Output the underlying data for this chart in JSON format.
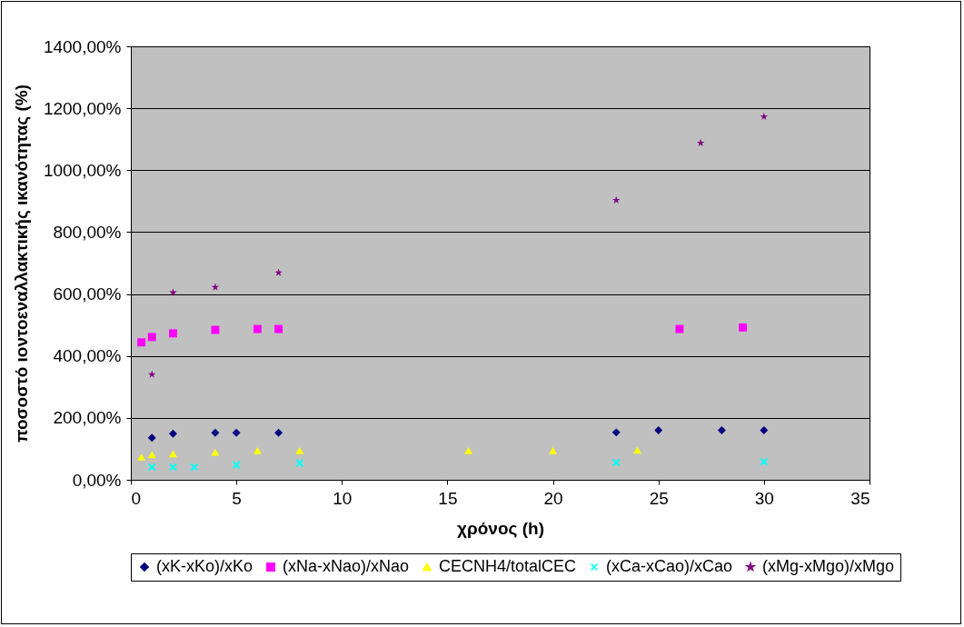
{
  "chart_data": {
    "type": "scatter",
    "xlabel": "χρόνος (h)",
    "ylabel": "ποσοστό ιοντοεναλλακτικής ικανότητας (%)",
    "xlim": [
      0,
      35
    ],
    "xticks": [
      0,
      5,
      10,
      15,
      20,
      25,
      30,
      35
    ],
    "ylim": [
      0,
      1400
    ],
    "yticks": [
      {
        "value": 0,
        "label": "0,00%"
      },
      {
        "value": 200,
        "label": "200,00%"
      },
      {
        "value": 400,
        "label": "400,00%"
      },
      {
        "value": 600,
        "label": "600,00%"
      },
      {
        "value": 800,
        "label": "800,00%"
      },
      {
        "value": 1000,
        "label": "1000,00%"
      },
      {
        "value": 1200,
        "label": "1200,00%"
      },
      {
        "value": 1400,
        "label": "1400,00%"
      }
    ],
    "grid": "y",
    "legend": "bottom",
    "series": [
      {
        "name": "(xK-xKo)/xKo",
        "color": "#000080",
        "marker": "diamond",
        "x": [
          1,
          2,
          4,
          5,
          7,
          23,
          25,
          28,
          30
        ],
        "values": [
          136,
          149,
          152,
          152,
          152,
          153,
          160,
          160,
          160
        ]
      },
      {
        "name": "(xNa-xNao)/xNao",
        "color": "#ff00ff",
        "marker": "square",
        "x": [
          0.5,
          1,
          2,
          4,
          6,
          7,
          26,
          29
        ],
        "values": [
          444,
          461,
          473,
          484,
          487,
          487,
          487,
          492
        ]
      },
      {
        "name": "CECNH4/totalCEC",
        "color": "#ffff00",
        "marker": "triangle",
        "x": [
          0.5,
          1,
          2,
          4,
          6,
          8,
          16,
          20,
          24
        ],
        "values": [
          74,
          81,
          84,
          89,
          94,
          94,
          94,
          94,
          96
        ]
      },
      {
        "name": "(xCa-xCao)/xCao",
        "color": "#00ffff",
        "marker": "cross",
        "x": [
          1,
          2,
          3,
          5,
          8,
          23,
          30
        ],
        "values": [
          41,
          41,
          41,
          48,
          54,
          56,
          58
        ]
      },
      {
        "name": "(xMg-xMgo)/xMgo",
        "color": "#800080",
        "marker": "star",
        "x": [
          1,
          2,
          4,
          7,
          23,
          27,
          30
        ],
        "values": [
          340,
          605,
          622,
          669,
          903,
          1088,
          1173
        ]
      }
    ]
  }
}
